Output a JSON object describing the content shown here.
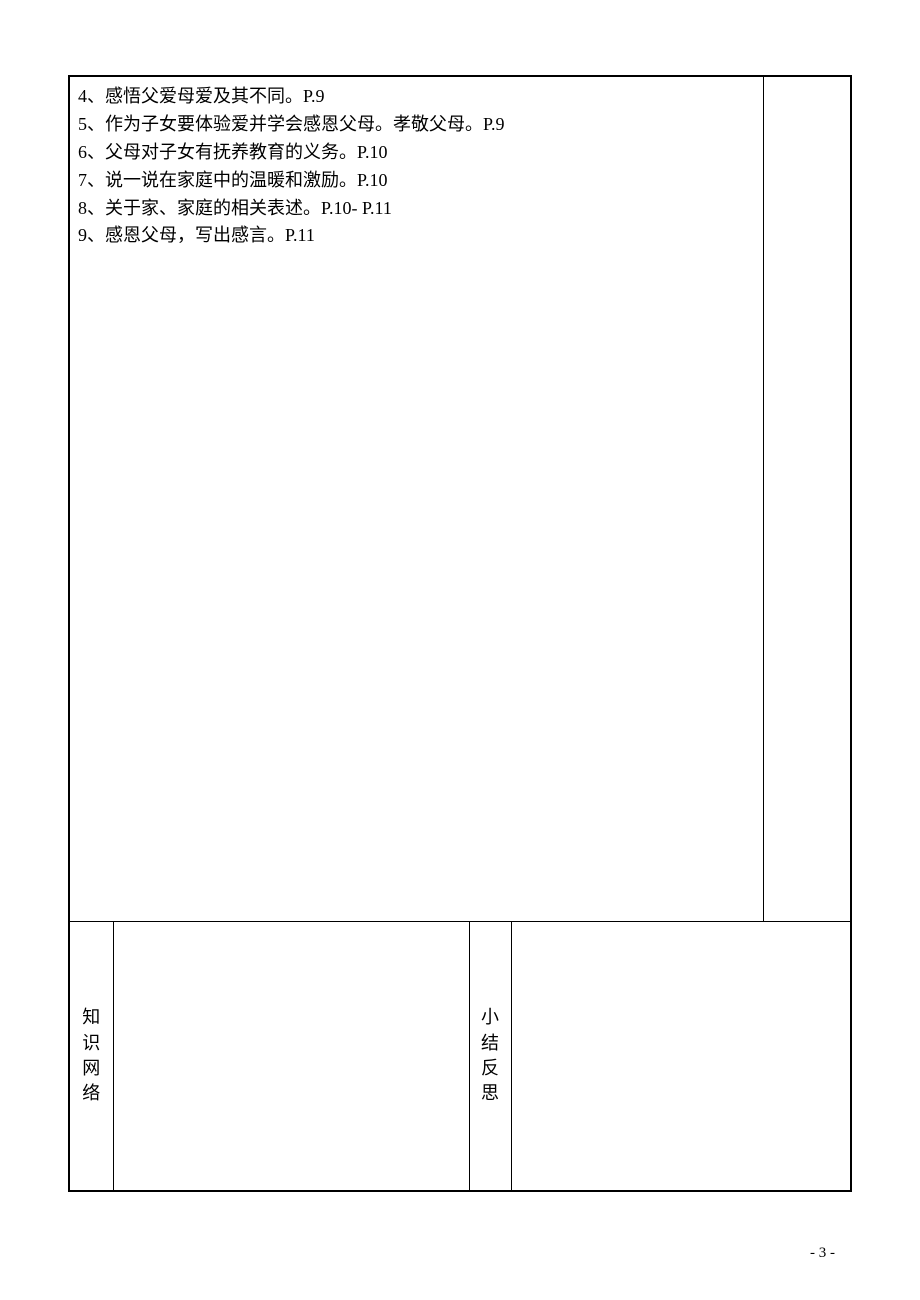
{
  "content": {
    "lines": [
      "4、感悟父爱母爱及其不同。P.9",
      "5、作为子女要体验爱并学会感恩父母。孝敬父母。P.9",
      "6、父母对子女有抚养教育的义务。P.10",
      "7、说一说在家庭中的温暖和激励。P.10",
      "8、关于家、家庭的相关表述。P.10- P.11",
      "9、感恩父母，写出感言。P.11"
    ]
  },
  "labels": {
    "left_label_chars": [
      "知",
      "识",
      "网",
      "络"
    ],
    "right_label_chars": [
      "小",
      "结",
      "反",
      "思"
    ]
  },
  "page_number": "- 3 -"
}
